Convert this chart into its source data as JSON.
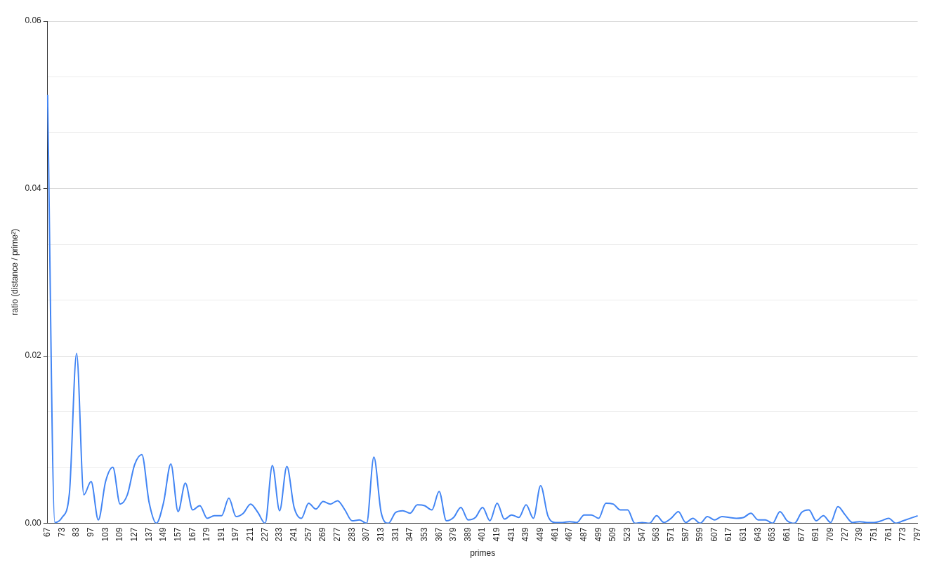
{
  "chart_data": {
    "type": "line",
    "xlabel": "primes",
    "ylabel": "ratio (distance / prime²)",
    "categories": [
      "67",
      null,
      "73",
      null,
      "83",
      null,
      "97",
      null,
      "103",
      null,
      "109",
      null,
      "127",
      null,
      "137",
      null,
      "149",
      null,
      "157",
      null,
      "167",
      null,
      "179",
      null,
      "191",
      null,
      "197",
      null,
      "211",
      null,
      "227",
      null,
      "233",
      null,
      "241",
      null,
      "257",
      null,
      "269",
      null,
      "277",
      null,
      "283",
      null,
      "307",
      null,
      "313",
      null,
      "331",
      null,
      "347",
      null,
      "353",
      null,
      "367",
      null,
      "379",
      null,
      "389",
      null,
      "401",
      null,
      "419",
      null,
      "431",
      null,
      "439",
      null,
      "449",
      null,
      "461",
      null,
      "467",
      null,
      "487",
      null,
      "499",
      null,
      "509",
      null,
      "523",
      null,
      "547",
      null,
      "563",
      null,
      "571",
      null,
      "587",
      null,
      "599",
      null,
      "607",
      null,
      "617",
      null,
      "631",
      null,
      "643",
      null,
      "653",
      null,
      "661",
      null,
      "677",
      null,
      "691",
      null,
      "709",
      null,
      "727",
      null,
      "739",
      null,
      "751",
      null,
      "761",
      null,
      "773",
      null,
      "797"
    ],
    "series": [
      {
        "color": "#4285f4",
        "values": [
          0.0512,
          0.0001,
          0.0007,
          0.0035,
          0.0203,
          0.0034,
          0.005,
          0.0004,
          0.005,
          0.0067,
          0.0023,
          0.0034,
          0.007,
          0.0082,
          0.0025,
          0,
          0.0025,
          0.0071,
          0.0014,
          0.0048,
          0.0016,
          0.0021,
          0.0006,
          0.0009,
          0.0009,
          0.003,
          0.0008,
          0.0012,
          0.0023,
          0.0013,
          0,
          0.0069,
          0.0015,
          0.0068,
          0.0019,
          0.0006,
          0.0024,
          0.0017,
          0.0026,
          0.0023,
          0.0027,
          0.0016,
          0.0003,
          0.0004,
          0,
          0.0079,
          0.0013,
          0,
          0.0013,
          0.0015,
          0.0012,
          0.0022,
          0.0021,
          0.0016,
          0.0038,
          0.0003,
          0.0007,
          0.0019,
          0.0004,
          0.0007,
          0.0019,
          0.0003,
          0.0024,
          0.0005,
          0.001,
          0.0007,
          0.0022,
          0.0006,
          0.0045,
          0.0009,
          0.0001,
          0.0001,
          0.0002,
          0.0001,
          0.001,
          0.001,
          0.0006,
          0.0024,
          0.0023,
          0.0016,
          0.0016,
          0,
          0.0001,
          0,
          0.0009,
          0.0001,
          0.0006,
          0.0014,
          0.0001,
          0.0006,
          0,
          0.0008,
          0.0004,
          0.0008,
          0.0007,
          0.0006,
          0.0007,
          0.0012,
          0.0004,
          0.0004,
          0,
          0.0014,
          0.0003,
          0,
          0.0013,
          0.0016,
          0.0003,
          0.0009,
          0.0001,
          0.002,
          0.001,
          0.0001,
          0.0002,
          0.0001,
          0.0001,
          0.0003,
          0.0006,
          0,
          0.0003,
          0.0006,
          0.0009
        ]
      }
    ],
    "ylim": [
      0,
      0.06
    ],
    "yticks": [
      {
        "value": 0,
        "label": "0.00"
      },
      {
        "value": 0.00667,
        "label": null
      },
      {
        "value": 0.01333,
        "label": null
      },
      {
        "value": 0.02,
        "label": "0.02"
      },
      {
        "value": 0.02667,
        "label": null
      },
      {
        "value": 0.03333,
        "label": null
      },
      {
        "value": 0.04,
        "label": "0.04"
      },
      {
        "value": 0.04667,
        "label": null
      },
      {
        "value": 0.05333,
        "label": null
      },
      {
        "value": 0.06,
        "label": "0.06"
      }
    ],
    "grid": "y",
    "legend": false,
    "marker": "none",
    "line_style": "solid"
  }
}
